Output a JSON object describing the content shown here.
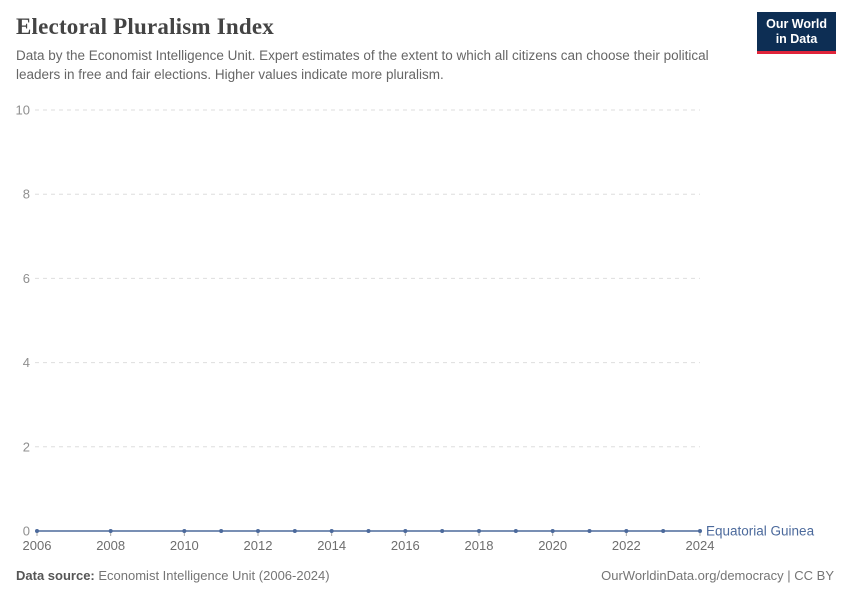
{
  "header": {
    "title": "Electoral Pluralism Index",
    "subtitle": "Data by the Economist Intelligence Unit. Expert estimates of the extent to which all citizens can choose their political leaders in free and fair elections. Higher values indicate more pluralism.",
    "logo": {
      "line1": "Our World",
      "line2": "in Data"
    }
  },
  "chart_data": {
    "type": "line",
    "title": "Electoral Pluralism Index",
    "xlabel": "",
    "ylabel": "",
    "xlim": [
      2006,
      2024
    ],
    "ylim": [
      0,
      10
    ],
    "x_ticks": [
      2006,
      2008,
      2010,
      2012,
      2014,
      2016,
      2018,
      2020,
      2022,
      2024
    ],
    "y_ticks": [
      0,
      2,
      4,
      6,
      8,
      10
    ],
    "grid": "horizontal-dashed",
    "legend_position": "end-of-line",
    "series": [
      {
        "name": "Equatorial Guinea",
        "color": "#4c6a9c",
        "x": [
          2006,
          2008,
          2010,
          2011,
          2012,
          2013,
          2014,
          2015,
          2016,
          2017,
          2018,
          2019,
          2020,
          2021,
          2022,
          2023,
          2024
        ],
        "values": [
          0,
          0,
          0,
          0,
          0,
          0,
          0,
          0,
          0,
          0,
          0,
          0,
          0,
          0,
          0,
          0,
          0
        ]
      }
    ]
  },
  "footer": {
    "source_label": "Data source:",
    "source_value": " Economist Intelligence Unit (2006-2024)",
    "link": "OurWorldinData.org/democracy | CC BY"
  },
  "colors": {
    "series_blue": "#4c6a9c",
    "gridline": "#dedede",
    "tick": "#a8a8a8",
    "logo_bg": "#0d2e54",
    "logo_red": "#e0243a"
  }
}
